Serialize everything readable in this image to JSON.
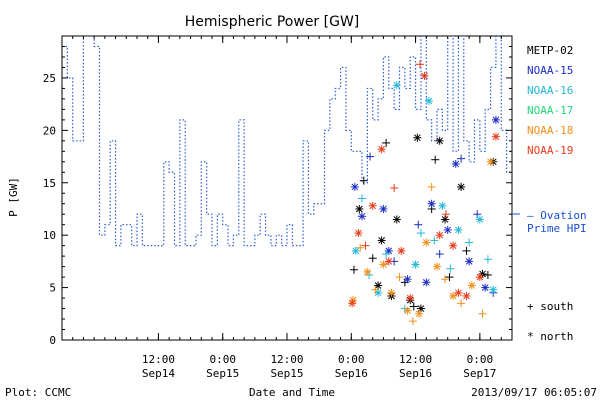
{
  "chart_data": {
    "type": "scatter",
    "title": "Hemispheric Power [GW]",
    "ylabel": "P [GW]",
    "xlabel": "Date and Time",
    "ylim": [
      0,
      29
    ],
    "yticks": [
      0,
      5,
      10,
      15,
      20,
      25
    ],
    "xlim": [
      "2013-09-13T18:00",
      "2013-09-17T06:00"
    ],
    "xticks": [
      {
        "t": "2013-09-14T12:00",
        "time": "12:00",
        "date": "Sep14"
      },
      {
        "t": "2013-09-15T00:00",
        "time": "0:00",
        "date": "Sep15"
      },
      {
        "t": "2013-09-15T12:00",
        "time": "12:00",
        "date": "Sep15"
      },
      {
        "t": "2013-09-16T00:00",
        "time": "0:00",
        "date": "Sep16"
      },
      {
        "t": "2013-09-16T12:00",
        "time": "12:00",
        "date": "Sep16"
      },
      {
        "t": "2013-09-17T00:00",
        "time": "0:00",
        "date": "Sep17"
      }
    ],
    "legend": {
      "placement": "right",
      "satellites": [
        {
          "name": "METP-02",
          "color": "#000000"
        },
        {
          "name": "NOAA-15",
          "color": "#1a2cc4"
        },
        {
          "name": "NOAA-16",
          "color": "#22b8d8"
        },
        {
          "name": "NOAA-17",
          "color": "#22d87a"
        },
        {
          "name": "NOAA-18",
          "color": "#f0901a"
        },
        {
          "name": "NOAA-19",
          "color": "#e83a1a"
        }
      ],
      "ovation": {
        "line1": "— Ovation",
        "line2": "Prime HPI",
        "color": "#1a4fd0"
      },
      "markers": [
        {
          "symbol": "+",
          "label": "south"
        },
        {
          "symbol": "*",
          "label": "north"
        }
      ]
    },
    "ovation_series": {
      "name": "Ovation Prime HPI",
      "color": "#2a5cd8",
      "points": [
        [
          "2013-09-13T18:00",
          28
        ],
        [
          "2013-09-13T19:00",
          25
        ],
        [
          "2013-09-13T20:00",
          19
        ],
        [
          "2013-09-13T22:00",
          29
        ],
        [
          "2013-09-14T00:00",
          28
        ],
        [
          "2013-09-14T01:00",
          10
        ],
        [
          "2013-09-14T02:00",
          11
        ],
        [
          "2013-09-14T03:00",
          19
        ],
        [
          "2013-09-14T04:00",
          9
        ],
        [
          "2013-09-14T05:00",
          11
        ],
        [
          "2013-09-14T07:00",
          9
        ],
        [
          "2013-09-14T08:00",
          12
        ],
        [
          "2013-09-14T09:00",
          9
        ],
        [
          "2013-09-14T13:00",
          17
        ],
        [
          "2013-09-14T14:00",
          16
        ],
        [
          "2013-09-14T15:00",
          9
        ],
        [
          "2013-09-14T16:00",
          21
        ],
        [
          "2013-09-14T17:00",
          9
        ],
        [
          "2013-09-14T19:00",
          10
        ],
        [
          "2013-09-14T20:00",
          17
        ],
        [
          "2013-09-14T21:00",
          12
        ],
        [
          "2013-09-14T22:00",
          9
        ],
        [
          "2013-09-14T23:00",
          12
        ],
        [
          "2013-09-15T00:00",
          11
        ],
        [
          "2013-09-15T01:00",
          9
        ],
        [
          "2013-09-15T02:00",
          10
        ],
        [
          "2013-09-15T03:00",
          21
        ],
        [
          "2013-09-15T04:00",
          9
        ],
        [
          "2013-09-15T06:00",
          10
        ],
        [
          "2013-09-15T07:00",
          12
        ],
        [
          "2013-09-15T08:00",
          10
        ],
        [
          "2013-09-15T09:00",
          9
        ],
        [
          "2013-09-15T10:00",
          10
        ],
        [
          "2013-09-15T11:00",
          9
        ],
        [
          "2013-09-15T12:00",
          11
        ],
        [
          "2013-09-15T13:00",
          9
        ],
        [
          "2013-09-15T15:00",
          19
        ],
        [
          "2013-09-15T16:00",
          12
        ],
        [
          "2013-09-15T17:00",
          13
        ],
        [
          "2013-09-15T19:00",
          20
        ],
        [
          "2013-09-15T20:00",
          23
        ],
        [
          "2013-09-15T21:00",
          24
        ],
        [
          "2013-09-15T22:00",
          26
        ],
        [
          "2013-09-15T23:00",
          20
        ],
        [
          "2013-09-16T00:00",
          18
        ],
        [
          "2013-09-16T02:00",
          15
        ],
        [
          "2013-09-16T03:00",
          24
        ],
        [
          "2013-09-16T04:00",
          21
        ],
        [
          "2013-09-16T05:00",
          23
        ],
        [
          "2013-09-16T06:00",
          27
        ],
        [
          "2013-09-16T07:00",
          24
        ],
        [
          "2013-09-16T08:00",
          22
        ],
        [
          "2013-09-16T09:00",
          26
        ],
        [
          "2013-09-16T10:00",
          24
        ],
        [
          "2013-09-16T11:00",
          27
        ],
        [
          "2013-09-16T12:00",
          22
        ],
        [
          "2013-09-16T13:00",
          29
        ],
        [
          "2013-09-16T14:00",
          21
        ],
        [
          "2013-09-16T15:00",
          19
        ],
        [
          "2013-09-16T16:00",
          22
        ],
        [
          "2013-09-16T17:00",
          20
        ],
        [
          "2013-09-16T18:00",
          29
        ],
        [
          "2013-09-16T19:00",
          18
        ],
        [
          "2013-09-16T20:00",
          29
        ],
        [
          "2013-09-16T21:00",
          19
        ],
        [
          "2013-09-16T22:00",
          17
        ],
        [
          "2013-09-16T23:00",
          21
        ],
        [
          "2013-09-17T00:00",
          18
        ],
        [
          "2013-09-17T01:00",
          22
        ],
        [
          "2013-09-17T02:00",
          26
        ],
        [
          "2013-09-17T03:00",
          29
        ],
        [
          "2013-09-17T04:00",
          20
        ],
        [
          "2013-09-17T05:00",
          16
        ],
        [
          "2013-09-17T06:00",
          16
        ]
      ]
    },
    "series": [
      {
        "satellite": "METP-02",
        "points": [
          [
            "2013-09-16T00:30",
            6.7,
            "+"
          ],
          [
            "2013-09-16T01:30",
            12.5,
            "*"
          ],
          [
            "2013-09-16T02:20",
            15.2,
            "+"
          ],
          [
            "2013-09-16T04:00",
            7.8,
            "+"
          ],
          [
            "2013-09-16T05:00",
            5.2,
            "*"
          ],
          [
            "2013-09-16T05:40",
            9.5,
            "*"
          ],
          [
            "2013-09-16T06:30",
            18.8,
            "+"
          ],
          [
            "2013-09-16T07:30",
            4.2,
            "*"
          ],
          [
            "2013-09-16T08:30",
            11.5,
            "*"
          ],
          [
            "2013-09-16T10:00",
            5.5,
            "+"
          ],
          [
            "2013-09-16T11:00",
            3.8,
            "*"
          ],
          [
            "2013-09-16T11:40",
            3.2,
            "+"
          ],
          [
            "2013-09-16T12:20",
            19.3,
            "*"
          ],
          [
            "2013-09-16T13:00",
            3.0,
            "*"
          ],
          [
            "2013-09-16T15:00",
            12.5,
            "+"
          ],
          [
            "2013-09-16T15:40",
            17.2,
            "+"
          ],
          [
            "2013-09-16T16:30",
            19.0,
            "*"
          ],
          [
            "2013-09-16T17:30",
            11.5,
            "*"
          ],
          [
            "2013-09-16T18:20",
            6.0,
            "+"
          ],
          [
            "2013-09-16T20:30",
            14.6,
            "*"
          ],
          [
            "2013-09-16T21:30",
            8.5,
            "+"
          ],
          [
            "2013-09-17T00:30",
            6.3,
            "*"
          ],
          [
            "2013-09-17T01:30",
            6.2,
            "+"
          ],
          [
            "2013-09-17T02:30",
            17.0,
            "*"
          ]
        ]
      },
      {
        "satellite": "NOAA-15",
        "points": [
          [
            "2013-09-16T00:40",
            14.6,
            "*"
          ],
          [
            "2013-09-16T02:00",
            11.8,
            "*"
          ],
          [
            "2013-09-16T03:30",
            17.5,
            "+"
          ],
          [
            "2013-09-16T06:00",
            12.5,
            "*"
          ],
          [
            "2013-09-16T07:00",
            8.5,
            "*"
          ],
          [
            "2013-09-16T08:00",
            7.5,
            "+"
          ],
          [
            "2013-09-16T10:30",
            5.8,
            "*"
          ],
          [
            "2013-09-16T12:30",
            11.0,
            "+"
          ],
          [
            "2013-09-16T14:00",
            5.5,
            "*"
          ],
          [
            "2013-09-16T15:00",
            13.0,
            "*"
          ],
          [
            "2013-09-16T16:30",
            8.2,
            "+"
          ],
          [
            "2013-09-16T18:00",
            10.5,
            "*"
          ],
          [
            "2013-09-16T19:30",
            16.8,
            "*"
          ],
          [
            "2013-09-16T20:30",
            17.3,
            "+"
          ],
          [
            "2013-09-16T22:00",
            7.5,
            "*"
          ],
          [
            "2013-09-16T23:30",
            12.0,
            "+"
          ],
          [
            "2013-09-17T01:00",
            5.0,
            "*"
          ],
          [
            "2013-09-17T02:30",
            4.5,
            "+"
          ],
          [
            "2013-09-17T03:00",
            21.0,
            "*"
          ]
        ]
      },
      {
        "satellite": "NOAA-16",
        "points": [
          [
            "2013-09-16T00:50",
            8.5,
            "*"
          ],
          [
            "2013-09-16T02:00",
            13.5,
            "+"
          ],
          [
            "2013-09-16T03:20",
            6.2,
            "+"
          ],
          [
            "2013-09-16T05:00",
            4.5,
            "*"
          ],
          [
            "2013-09-16T06:30",
            8.2,
            "+"
          ],
          [
            "2013-09-16T08:30",
            24.3,
            "*"
          ],
          [
            "2013-09-16T10:00",
            3.0,
            "+"
          ],
          [
            "2013-09-16T12:00",
            7.2,
            "*"
          ],
          [
            "2013-09-16T13:00",
            10.2,
            "+"
          ],
          [
            "2013-09-16T14:30",
            22.8,
            "*"
          ],
          [
            "2013-09-16T15:30",
            9.5,
            "+"
          ],
          [
            "2013-09-16T17:00",
            12.8,
            "*"
          ],
          [
            "2013-09-16T18:30",
            6.8,
            "+"
          ],
          [
            "2013-09-16T20:00",
            10.5,
            "*"
          ],
          [
            "2013-09-16T22:00",
            9.3,
            "+"
          ],
          [
            "2013-09-17T00:00",
            11.5,
            "*"
          ],
          [
            "2013-09-17T01:30",
            7.7,
            "+"
          ],
          [
            "2013-09-17T02:30",
            4.8,
            "*"
          ]
        ]
      },
      {
        "satellite": "NOAA-18",
        "points": [
          [
            "2013-09-16T00:20",
            3.8,
            "*"
          ],
          [
            "2013-09-16T01:40",
            8.8,
            "+"
          ],
          [
            "2013-09-16T03:00",
            6.5,
            "*"
          ],
          [
            "2013-09-16T04:30",
            4.8,
            "+"
          ],
          [
            "2013-09-16T06:00",
            7.2,
            "*"
          ],
          [
            "2013-09-16T07:30",
            4.5,
            "*"
          ],
          [
            "2013-09-16T09:00",
            6.0,
            "+"
          ],
          [
            "2013-09-16T10:30",
            2.8,
            "*"
          ],
          [
            "2013-09-16T11:30",
            1.8,
            "+"
          ],
          [
            "2013-09-16T12:40",
            2.5,
            "*"
          ],
          [
            "2013-09-16T14:00",
            9.3,
            "*"
          ],
          [
            "2013-09-16T15:00",
            14.6,
            "+"
          ],
          [
            "2013-09-16T16:00",
            7.0,
            "*"
          ],
          [
            "2013-09-16T17:30",
            5.8,
            "+"
          ],
          [
            "2013-09-16T19:00",
            4.2,
            "*"
          ],
          [
            "2013-09-16T20:30",
            3.5,
            "+"
          ],
          [
            "2013-09-16T22:30",
            5.2,
            "*"
          ],
          [
            "2013-09-17T00:30",
            2.5,
            "+"
          ],
          [
            "2013-09-17T02:00",
            17.0,
            "*"
          ]
        ]
      },
      {
        "satellite": "NOAA-19",
        "points": [
          [
            "2013-09-16T00:10",
            3.5,
            "*"
          ],
          [
            "2013-09-16T01:20",
            10.2,
            "*"
          ],
          [
            "2013-09-16T02:40",
            9.0,
            "+"
          ],
          [
            "2013-09-16T04:00",
            12.8,
            "*"
          ],
          [
            "2013-09-16T05:40",
            18.2,
            "*"
          ],
          [
            "2013-09-16T07:00",
            7.5,
            "*"
          ],
          [
            "2013-09-16T08:00",
            14.5,
            "+"
          ],
          [
            "2013-09-16T09:20",
            8.5,
            "*"
          ],
          [
            "2013-09-16T11:00",
            4.0,
            "*"
          ],
          [
            "2013-09-16T12:50",
            26.3,
            "+"
          ],
          [
            "2013-09-16T13:40",
            25.2,
            "*"
          ],
          [
            "2013-09-16T16:30",
            10.0,
            "*"
          ],
          [
            "2013-09-16T17:40",
            12.0,
            "+"
          ],
          [
            "2013-09-16T19:00",
            9.0,
            "*"
          ],
          [
            "2013-09-16T20:00",
            4.5,
            "*"
          ],
          [
            "2013-09-16T21:30",
            4.2,
            "*"
          ],
          [
            "2013-09-17T00:00",
            6.0,
            "*"
          ],
          [
            "2013-09-17T03:00",
            19.4,
            "*"
          ]
        ]
      }
    ]
  },
  "footer": {
    "left": "Plot: CCMC",
    "right": "2013/09/17 06:05:07"
  }
}
